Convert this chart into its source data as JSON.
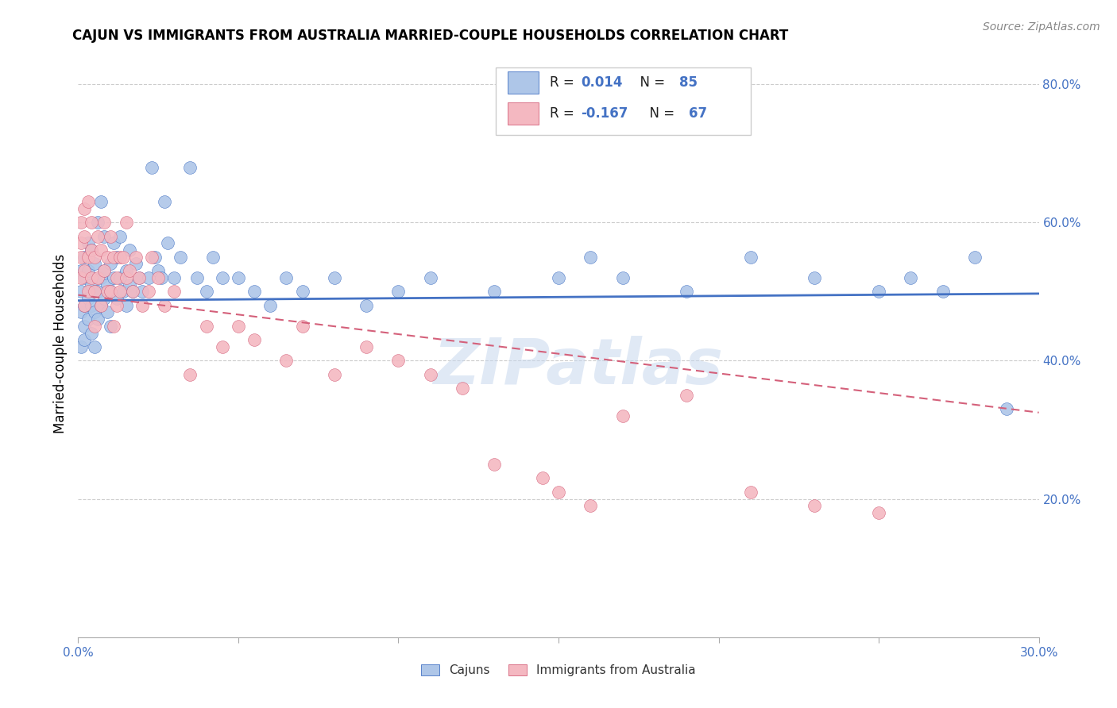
{
  "title": "CAJUN VS IMMIGRANTS FROM AUSTRALIA MARRIED-COUPLE HOUSEHOLDS CORRELATION CHART",
  "source": "Source: ZipAtlas.com",
  "ylabel": "Married-couple Households",
  "xlim": [
    0.0,
    0.3
  ],
  "ylim": [
    0.0,
    0.85
  ],
  "x_ticks": [
    0.0,
    0.05,
    0.1,
    0.15,
    0.2,
    0.25,
    0.3
  ],
  "x_tick_labels": [
    "0.0%",
    "",
    "",
    "",
    "",
    "",
    "30.0%"
  ],
  "y_ticks_right": [
    0.2,
    0.4,
    0.6,
    0.8
  ],
  "y_tick_labels_right": [
    "20.0%",
    "40.0%",
    "60.0%",
    "80.0%"
  ],
  "r_cajun": 0.014,
  "n_cajun": 85,
  "r_australia": -0.167,
  "n_australia": 67,
  "color_cajun": "#aec6e8",
  "color_australia": "#f4b8c1",
  "color_cajun_line": "#4472c4",
  "color_australia_line": "#d4607a",
  "watermark": "ZIPatlas",
  "cajun_line_y0": 0.487,
  "cajun_line_y1": 0.497,
  "australia_line_y0": 0.495,
  "australia_line_y1": 0.325,
  "cajun_x": [
    0.001,
    0.001,
    0.001,
    0.001,
    0.002,
    0.002,
    0.002,
    0.002,
    0.002,
    0.003,
    0.003,
    0.003,
    0.003,
    0.004,
    0.004,
    0.004,
    0.004,
    0.005,
    0.005,
    0.005,
    0.005,
    0.006,
    0.006,
    0.006,
    0.007,
    0.007,
    0.007,
    0.008,
    0.008,
    0.008,
    0.009,
    0.009,
    0.01,
    0.01,
    0.01,
    0.011,
    0.011,
    0.012,
    0.012,
    0.013,
    0.013,
    0.014,
    0.015,
    0.015,
    0.016,
    0.016,
    0.017,
    0.018,
    0.019,
    0.02,
    0.022,
    0.023,
    0.024,
    0.025,
    0.026,
    0.027,
    0.028,
    0.03,
    0.032,
    0.035,
    0.037,
    0.04,
    0.042,
    0.045,
    0.05,
    0.055,
    0.06,
    0.065,
    0.07,
    0.08,
    0.09,
    0.1,
    0.11,
    0.13,
    0.15,
    0.17,
    0.19,
    0.21,
    0.23,
    0.25,
    0.26,
    0.27,
    0.28,
    0.29,
    0.16
  ],
  "cajun_y": [
    0.47,
    0.5,
    0.53,
    0.42,
    0.45,
    0.48,
    0.52,
    0.55,
    0.43,
    0.46,
    0.49,
    0.53,
    0.57,
    0.44,
    0.48,
    0.51,
    0.56,
    0.47,
    0.5,
    0.54,
    0.42,
    0.46,
    0.5,
    0.6,
    0.48,
    0.52,
    0.63,
    0.49,
    0.53,
    0.58,
    0.47,
    0.51,
    0.5,
    0.54,
    0.45,
    0.52,
    0.57,
    0.49,
    0.55,
    0.52,
    0.58,
    0.5,
    0.53,
    0.48,
    0.56,
    0.51,
    0.5,
    0.54,
    0.52,
    0.5,
    0.52,
    0.68,
    0.55,
    0.53,
    0.52,
    0.63,
    0.57,
    0.52,
    0.55,
    0.68,
    0.52,
    0.5,
    0.55,
    0.52,
    0.52,
    0.5,
    0.48,
    0.52,
    0.5,
    0.52,
    0.48,
    0.5,
    0.52,
    0.5,
    0.52,
    0.52,
    0.5,
    0.55,
    0.52,
    0.5,
    0.52,
    0.5,
    0.55,
    0.33,
    0.55
  ],
  "australia_x": [
    0.001,
    0.001,
    0.001,
    0.001,
    0.002,
    0.002,
    0.002,
    0.002,
    0.003,
    0.003,
    0.003,
    0.004,
    0.004,
    0.004,
    0.005,
    0.005,
    0.005,
    0.006,
    0.006,
    0.007,
    0.007,
    0.008,
    0.008,
    0.009,
    0.009,
    0.01,
    0.01,
    0.011,
    0.011,
    0.012,
    0.012,
    0.013,
    0.013,
    0.014,
    0.015,
    0.015,
    0.016,
    0.017,
    0.018,
    0.019,
    0.02,
    0.022,
    0.023,
    0.025,
    0.027,
    0.03,
    0.035,
    0.04,
    0.045,
    0.05,
    0.055,
    0.065,
    0.07,
    0.08,
    0.09,
    0.1,
    0.11,
    0.12,
    0.13,
    0.145,
    0.15,
    0.16,
    0.17,
    0.19,
    0.21,
    0.23,
    0.25
  ],
  "australia_y": [
    0.57,
    0.6,
    0.52,
    0.55,
    0.62,
    0.58,
    0.48,
    0.53,
    0.55,
    0.5,
    0.63,
    0.6,
    0.52,
    0.56,
    0.55,
    0.5,
    0.45,
    0.58,
    0.52,
    0.56,
    0.48,
    0.53,
    0.6,
    0.5,
    0.55,
    0.58,
    0.5,
    0.55,
    0.45,
    0.52,
    0.48,
    0.55,
    0.5,
    0.55,
    0.6,
    0.52,
    0.53,
    0.5,
    0.55,
    0.52,
    0.48,
    0.5,
    0.55,
    0.52,
    0.48,
    0.5,
    0.38,
    0.45,
    0.42,
    0.45,
    0.43,
    0.4,
    0.45,
    0.38,
    0.42,
    0.4,
    0.38,
    0.36,
    0.25,
    0.23,
    0.21,
    0.19,
    0.32,
    0.35,
    0.21,
    0.19,
    0.18
  ]
}
